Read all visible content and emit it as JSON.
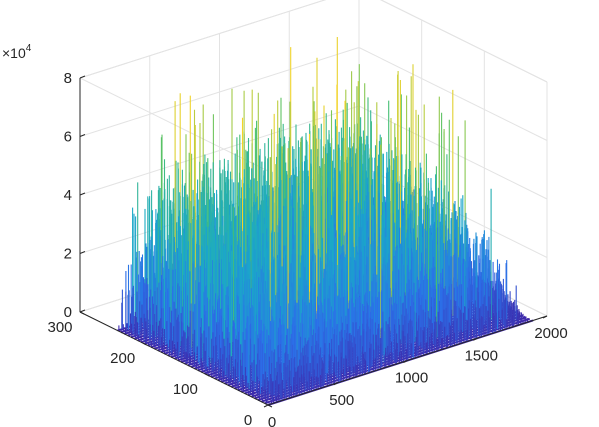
{
  "chart_data": {
    "type": "surface",
    "title": "",
    "xlabel": "",
    "ylabel": "",
    "zlabel": "",
    "xlim": [
      0,
      2000
    ],
    "ylim": [
      0,
      300
    ],
    "zlim": [
      0,
      80000
    ],
    "x_ticks": [
      "0",
      "500",
      "1000",
      "1500",
      "2000"
    ],
    "y_ticks": [
      "0",
      "100",
      "200",
      "300"
    ],
    "z_ticks": [
      "0",
      "2",
      "4",
      "6",
      "8"
    ],
    "z_exponent_base": "×10",
    "z_exponent_power": "4",
    "grid": true,
    "colormap": "parula",
    "colors": {
      "low": "#3e26a8",
      "mid_low": "#2c6fe9",
      "mid": "#1aa9c9",
      "mid_high": "#49c16d",
      "high": "#f9d427"
    },
    "data_extent": {
      "x_range": [
        0,
        1900
      ],
      "y_range": [
        0,
        240
      ]
    },
    "peak_z": 80000,
    "typical_z_range": [
      15000,
      55000
    ]
  }
}
